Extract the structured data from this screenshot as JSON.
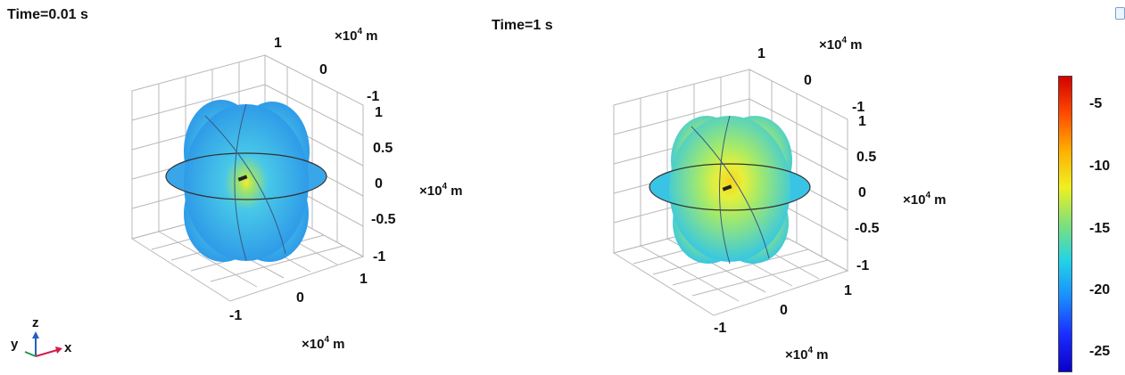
{
  "panels": [
    {
      "title": "Time=0.01 s",
      "top_axis": {
        "ticks": [
          "1",
          "0",
          "-1"
        ],
        "unit_prefix": "×10",
        "unit_exp": "4",
        "unit_suffix": " m"
      },
      "z_axis": {
        "ticks": [
          "1",
          "0.5",
          "0",
          "-0.5",
          "-1"
        ],
        "unit_prefix": "×10",
        "unit_exp": "4",
        "unit_suffix": " m"
      },
      "bottom_axis": {
        "ticks": [
          "-1",
          "0",
          "1"
        ],
        "unit_prefix": "×10",
        "unit_exp": "4",
        "unit_suffix": " m"
      },
      "surface_color_center": "#f2ec2c",
      "surface_color_edge": "#2f9be8"
    },
    {
      "title": "Time=1 s",
      "top_axis": {
        "ticks": [
          "1",
          "0",
          "-1"
        ],
        "unit_prefix": "×10",
        "unit_exp": "4",
        "unit_suffix": " m"
      },
      "z_axis": {
        "ticks": [
          "1",
          "0.5",
          "0",
          "-0.5",
          "-1"
        ],
        "unit_prefix": "×10",
        "unit_exp": "4",
        "unit_suffix": " m"
      },
      "bottom_axis": {
        "ticks": [
          "-1",
          "0",
          "1"
        ],
        "unit_prefix": "×10",
        "unit_exp": "4",
        "unit_suffix": " m"
      },
      "surface_color_center": "#f5d21e",
      "surface_color_edge": "#36c7e4"
    }
  ],
  "colorbar": {
    "ticks": [
      "-5",
      "-10",
      "-15",
      "-20",
      "-25"
    ],
    "colors": [
      "#d40000",
      "#ff4a00",
      "#ffae00",
      "#f0f020",
      "#7fe07a",
      "#22d3e6",
      "#1a8cff",
      "#1a2cff",
      "#0a00c8"
    ]
  },
  "axis_triad": {
    "x": "x",
    "y": "y",
    "z": "z",
    "x_color": "#d0204a",
    "y_color": "#1e9a4a",
    "z_color": "#2060c0"
  },
  "corner_icon": "window-restore-icon"
}
